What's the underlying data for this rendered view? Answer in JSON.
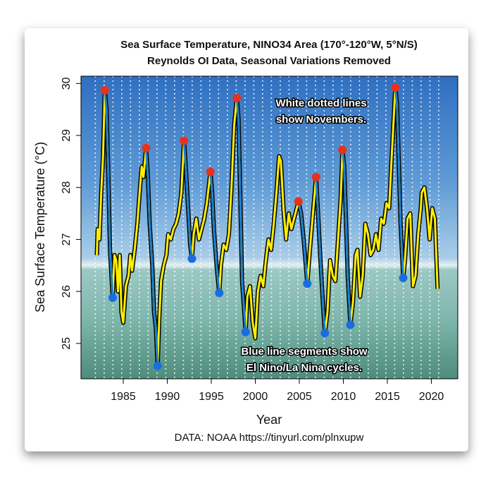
{
  "chart_data": {
    "type": "line",
    "title": [
      "Sea Surface Temperature, NINO34 Area (170°-120°W, 5°N/S)",
      "Reynolds OI Data, Seasonal Variations Removed"
    ],
    "y_label": "Sea Surface Temperature (°C)",
    "x_label": "Year",
    "caption": "DATA: NOAA https://tinyurl.com/plnxupw",
    "annotations": [
      [
        "White dotted lines",
        "show Novembers."
      ],
      [
        "Blue line segments show",
        "El Nino/La Nina cycles."
      ]
    ],
    "xlim": [
      1980.2,
      2023
    ],
    "ylim": [
      24.32,
      30.14
    ],
    "xticks": [
      1985,
      1990,
      1995,
      2000,
      2005,
      2010,
      2015,
      2020
    ],
    "yticks": [
      25,
      26,
      27,
      28,
      29,
      30
    ],
    "color": "#ffee00",
    "outline_color": "#000000",
    "segment_color": "#1a7fd0",
    "x": [
      1982.0,
      1982.1,
      1982.3,
      1982.5,
      1982.7,
      1982.9,
      1983.1,
      1983.3,
      1983.5,
      1983.8,
      1984.0,
      1984.2,
      1984.4,
      1984.6,
      1984.8,
      1985.0,
      1985.3,
      1985.6,
      1985.8,
      1986.0,
      1986.3,
      1986.6,
      1986.9,
      1987.1,
      1987.3,
      1987.6,
      1987.8,
      1988.0,
      1988.3,
      1988.5,
      1988.7,
      1988.9,
      1989.1,
      1989.3,
      1989.6,
      1989.9,
      1990.1,
      1990.4,
      1990.7,
      1991.0,
      1991.3,
      1991.6,
      1991.9,
      1992.1,
      1992.4,
      1992.6,
      1992.8,
      1993.0,
      1993.3,
      1993.6,
      1993.9,
      1994.2,
      1994.5,
      1994.9,
      1995.1,
      1995.3,
      1995.6,
      1995.9,
      1996.1,
      1996.4,
      1996.7,
      1997.0,
      1997.3,
      1997.6,
      1997.9,
      1998.1,
      1998.3,
      1998.5,
      1998.9,
      1999.1,
      1999.4,
      1999.7,
      2000.0,
      2000.3,
      2000.6,
      2000.9,
      2001.2,
      2001.5,
      2001.8,
      2002.1,
      2002.4,
      2002.7,
      2002.9,
      2003.2,
      2003.5,
      2003.8,
      2004.1,
      2004.4,
      2004.7,
      2004.9,
      2005.2,
      2005.5,
      2005.9,
      2006.2,
      2006.5,
      2006.9,
      2007.1,
      2007.4,
      2007.7,
      2007.9,
      2008.2,
      2008.5,
      2008.8,
      2009.1,
      2009.4,
      2009.7,
      2009.9,
      2010.1,
      2010.3,
      2010.5,
      2010.8,
      2011.1,
      2011.4,
      2011.6,
      2011.9,
      2012.2,
      2012.5,
      2012.8,
      2013.1,
      2013.4,
      2013.7,
      2014.0,
      2014.3,
      2014.6,
      2014.9,
      2015.2,
      2015.5,
      2015.9,
      2016.1,
      2016.3,
      2016.5,
      2016.8,
      2017.0,
      2017.3,
      2017.6,
      2017.9,
      2018.2,
      2018.5,
      2018.8,
      2018.9,
      2019.2,
      2019.5,
      2019.8,
      2020.1,
      2020.4,
      2020.6,
      2020.7
    ],
    "values": [
      26.7,
      27.2,
      27.0,
      27.9,
      28.6,
      29.87,
      29.5,
      28.3,
      26.8,
      25.88,
      26.7,
      26.6,
      26.0,
      26.7,
      25.6,
      25.4,
      26.1,
      26.3,
      26.7,
      26.4,
      26.8,
      27.3,
      28.0,
      28.4,
      28.2,
      28.76,
      28.2,
      27.3,
      26.5,
      25.6,
      25.3,
      24.57,
      25.5,
      26.2,
      26.5,
      26.7,
      27.1,
      27.0,
      27.2,
      27.3,
      27.5,
      27.9,
      28.9,
      28.4,
      27.5,
      26.9,
      26.63,
      27.1,
      27.4,
      27.0,
      27.2,
      27.4,
      27.7,
      28.3,
      27.9,
      27.2,
      26.5,
      25.97,
      26.5,
      26.9,
      26.8,
      27.1,
      28.0,
      29.2,
      29.72,
      29.3,
      27.8,
      26.2,
      25.22,
      25.9,
      26.1,
      25.4,
      25.1,
      26.0,
      26.3,
      26.1,
      26.6,
      27.0,
      26.8,
      27.3,
      27.9,
      28.6,
      28.5,
      27.6,
      27.0,
      27.5,
      27.2,
      27.4,
      27.6,
      27.73,
      27.5,
      27.0,
      26.15,
      26.8,
      27.4,
      28.2,
      27.6,
      26.6,
      25.7,
      25.2,
      25.6,
      26.6,
      26.3,
      26.2,
      27.0,
      27.8,
      28.72,
      28.4,
      27.4,
      26.3,
      25.36,
      25.8,
      26.7,
      26.8,
      25.9,
      26.3,
      27.3,
      27.1,
      26.7,
      26.8,
      27.1,
      26.8,
      27.4,
      27.3,
      27.7,
      27.6,
      28.6,
      29.92,
      29.6,
      28.5,
      27.3,
      26.26,
      26.6,
      27.4,
      27.5,
      26.1,
      26.3,
      27.1,
      27.6,
      27.9,
      28.0,
      27.6,
      27.0,
      27.6,
      27.4,
      26.5,
      26.05
    ],
    "peaks": {
      "color": "#e8311a",
      "x": [
        1982.9,
        1987.6,
        1991.9,
        1994.9,
        1997.9,
        2004.9,
        2006.9,
        2009.9,
        2015.9
      ],
      "values": [
        29.87,
        28.76,
        28.9,
        28.3,
        29.72,
        27.73,
        28.2,
        28.72,
        29.92
      ]
    },
    "troughs": {
      "color": "#1a6de0",
      "x": [
        1983.8,
        1988.9,
        1992.8,
        1995.9,
        1998.9,
        2005.9,
        2007.9,
        2010.8,
        2016.8
      ],
      "values": [
        25.88,
        24.57,
        26.63,
        25.97,
        25.22,
        26.15,
        25.2,
        25.36,
        26.26
      ]
    },
    "november_lines": [
      1981.83,
      1982.83,
      1983.83,
      1984.83,
      1985.83,
      1986.83,
      1987.83,
      1988.83,
      1989.83,
      1990.83,
      1991.83,
      1992.83,
      1993.83,
      1994.83,
      1995.83,
      1996.83,
      1997.83,
      1998.83,
      1999.83,
      2000.83,
      2001.83,
      2002.83,
      2003.83,
      2004.83,
      2005.83,
      2006.83,
      2007.83,
      2008.83,
      2009.83,
      2010.83,
      2011.83,
      2012.83,
      2013.83,
      2014.83,
      2015.83,
      2016.83,
      2017.83,
      2018.83,
      2019.83,
      2020.83
    ]
  }
}
